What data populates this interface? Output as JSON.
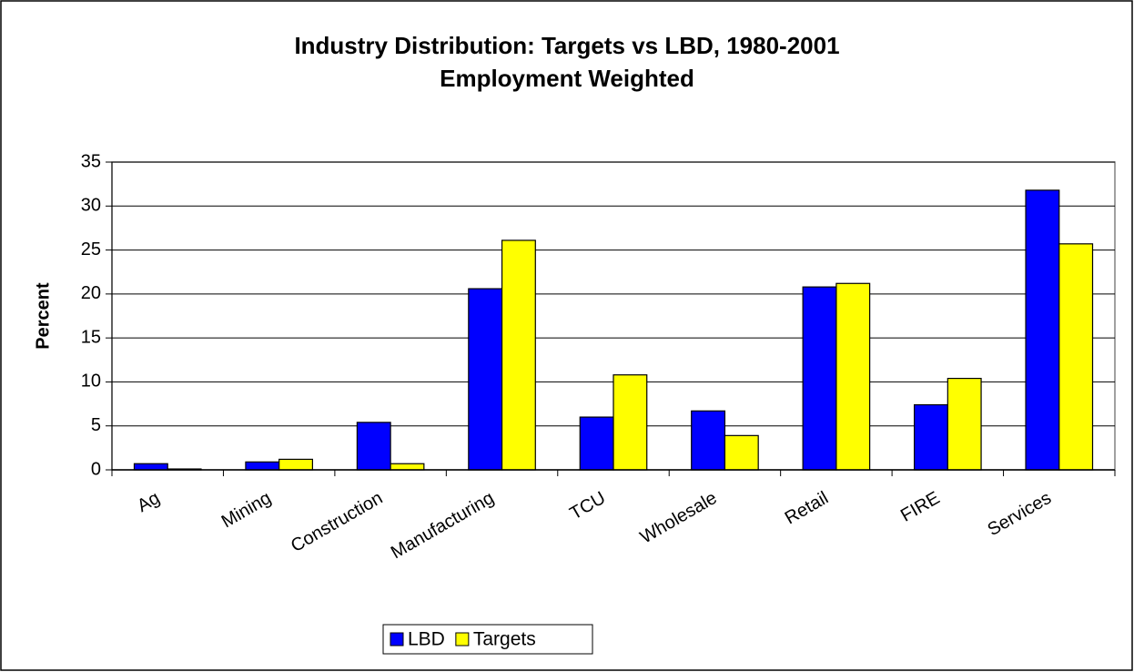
{
  "chart_data": {
    "type": "bar",
    "title": "Industry Distribution: Targets vs LBD, 1980-2001",
    "subtitle": "Employment Weighted",
    "y_label": "Percent",
    "categories": [
      "Ag",
      "Mining",
      "Construction",
      "Manufacturing",
      "TCU",
      "Wholesale",
      "Retail",
      "FIRE",
      "Services"
    ],
    "series": [
      {
        "name": "LBD",
        "color": "#0000ff",
        "values": [
          0.7,
          0.9,
          5.4,
          20.6,
          6.0,
          6.7,
          20.8,
          7.4,
          31.8
        ]
      },
      {
        "name": "Targets",
        "color": "#ffff00",
        "values": [
          0.1,
          1.2,
          0.7,
          26.1,
          10.8,
          3.9,
          21.2,
          10.4,
          25.7
        ]
      }
    ],
    "ylim": [
      0,
      35
    ],
    "yticks": [
      0,
      5,
      10,
      15,
      20,
      25,
      30,
      35
    ],
    "grid": true,
    "legend": "bottom"
  }
}
